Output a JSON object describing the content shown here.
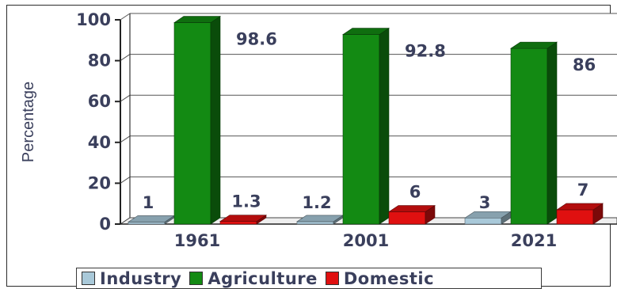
{
  "chart_data": {
    "type": "bar",
    "categories": [
      "1961",
      "2001",
      "2021"
    ],
    "series": [
      {
        "name": "Industry",
        "values": [
          1,
          1.2,
          3
        ],
        "color": "#a9c9d9"
      },
      {
        "name": "Agriculture",
        "values": [
          98.6,
          92.8,
          86
        ],
        "color": "#138a13"
      },
      {
        "name": "Domestic",
        "values": [
          1.3,
          6,
          7
        ],
        "color": "#e01010"
      }
    ],
    "data_labels": [
      [
        "1",
        "98.6",
        "1.3"
      ],
      [
        "1.2",
        "92.8",
        "6"
      ],
      [
        "3",
        "86",
        "7"
      ]
    ],
    "title": "",
    "xlabel": "",
    "ylabel": "Percentage",
    "ylim": [
      0,
      100
    ],
    "yticks": [
      0,
      20,
      40,
      60,
      80,
      100
    ],
    "grid": true,
    "legend_position": "bottom",
    "style": "3d-bar"
  }
}
